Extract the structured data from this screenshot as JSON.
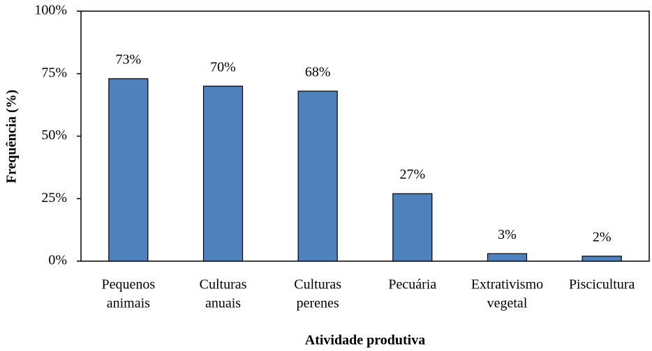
{
  "chart_data": {
    "type": "bar",
    "y_label": "Frequência (%)",
    "x_label": "Atividade produtiva",
    "categories": [
      [
        "Pequenos",
        "animais"
      ],
      [
        "Culturas",
        "anuais"
      ],
      [
        "Culturas",
        "perenes"
      ],
      [
        "Pecuária"
      ],
      [
        "Extrativismo",
        "vegetal"
      ],
      [
        "Piscicultura"
      ]
    ],
    "values": [
      73,
      70,
      68,
      27,
      3,
      2
    ],
    "value_labels": [
      "73%",
      "70%",
      "68%",
      "27%",
      "3%",
      "2%"
    ],
    "color": "#4f81bd",
    "ylim": [
      0,
      100
    ],
    "yticks": [
      {
        "value": 0,
        "label": "0%"
      },
      {
        "value": 25,
        "label": "25%"
      },
      {
        "value": 50,
        "label": "50%"
      },
      {
        "value": 75,
        "label": "75%"
      },
      {
        "value": 100,
        "label": "100%"
      }
    ],
    "grid": false
  }
}
